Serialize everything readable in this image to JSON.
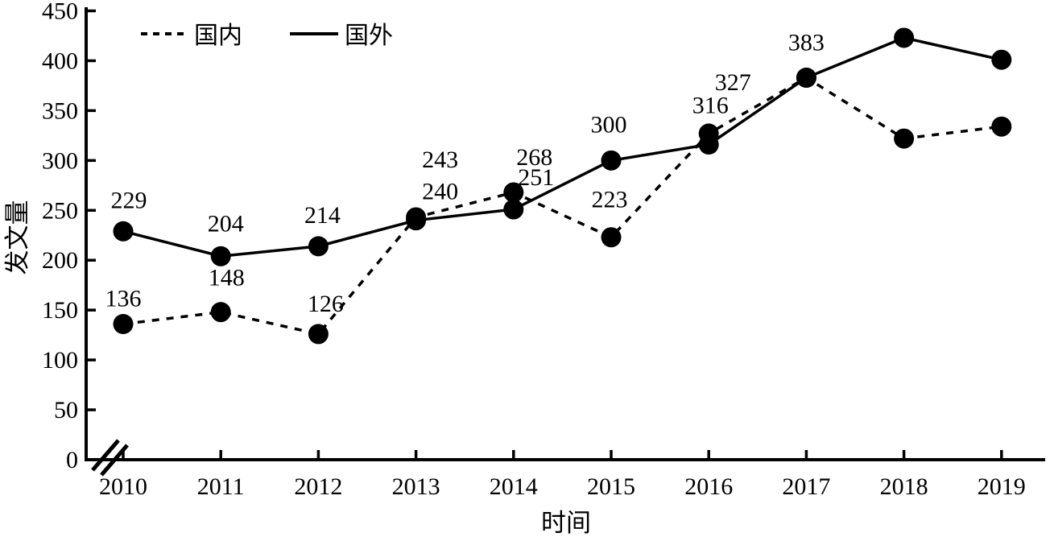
{
  "chart_data": {
    "type": "line",
    "title": "",
    "xlabel": "时间",
    "ylabel": "发文量",
    "categories": [
      "2010",
      "2011",
      "2012",
      "2013",
      "2014",
      "2015",
      "2016",
      "2017",
      "2018",
      "2019"
    ],
    "y_ticks": [
      0,
      50,
      100,
      150,
      200,
      250,
      300,
      350,
      400,
      450
    ],
    "ylim": [
      0,
      450
    ],
    "grid": false,
    "axis_break_on_x": true,
    "legend_position": "top-left-inside",
    "series": [
      {
        "name": "国内",
        "style": "dashed",
        "values": [
          136,
          148,
          126,
          243,
          268,
          223,
          327,
          383,
          322,
          334
        ],
        "point_labels": [
          "136",
          "148",
          "126",
          "243",
          "268",
          "223",
          "327",
          "",
          "",
          ""
        ]
      },
      {
        "name": "国外",
        "style": "solid",
        "values": [
          229,
          204,
          214,
          240,
          251,
          300,
          316,
          383,
          423,
          401
        ],
        "point_labels": [
          "229",
          "204",
          "214",
          "240",
          "251",
          "300",
          "316",
          "383",
          "",
          ""
        ]
      }
    ],
    "colors": {
      "line": "#000000",
      "marker": "#000000",
      "text": "#000000",
      "background": "#ffffff"
    }
  }
}
